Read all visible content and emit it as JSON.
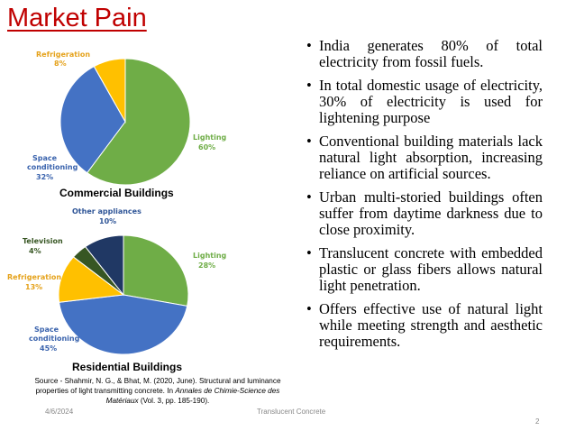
{
  "slide": {
    "title": "Market Pain",
    "date": "4/6/2024",
    "footer_center": "Translucent Concrete",
    "page_number": "2"
  },
  "commercial": {
    "caption": "Commercial Buildings",
    "slices": [
      {
        "name": "Lighting",
        "label": "Lighting",
        "pct_text": "60%",
        "value": 60,
        "color": "#6fad47"
      },
      {
        "name": "Space conditioning",
        "label_lines": [
          "Space",
          "conditioning"
        ],
        "pct_text": "32%",
        "value": 32,
        "color": "#4472c4"
      },
      {
        "name": "Refrigeration",
        "label": "Refrigeration",
        "pct_text": "8%",
        "value": 8,
        "color": "#ffc000"
      }
    ]
  },
  "residential": {
    "caption": "Residential Buildings",
    "slices": [
      {
        "name": "Lighting",
        "label": "Lighting",
        "pct_text": "28%",
        "value": 28,
        "color": "#6fad47"
      },
      {
        "name": "Space conditioning",
        "label_lines": [
          "Space",
          "conditioning"
        ],
        "pct_text": "45%",
        "value": 45,
        "color": "#4472c4"
      },
      {
        "name": "Refrigeration",
        "label": "Refrigeration",
        "pct_text": "13%",
        "value": 13,
        "color": "#ffc000"
      },
      {
        "name": "Television",
        "label": "Television",
        "pct_text": "4%",
        "value": 4,
        "color": "#375623"
      },
      {
        "name": "Other appliances",
        "label": "Other appliances",
        "pct_text": "10%",
        "value": 10,
        "color": "#203864"
      }
    ]
  },
  "bullets": [
    "India generates 80% of total electricity from fossil fuels.",
    "In total domestic usage of electricity, 30% of electricity is used for lightening purpose",
    "Conventional building materials lack natural light absorption, increasing reliance on artificial sources.",
    "Urban multi-storied buildings often suffer from daytime darkness due to close proximity.",
    "Translucent concrete with embedded plastic or glass fibers allows natural light penetration.",
    "Offers effective use of natural light while meeting strength and aesthetic requirements."
  ],
  "source": {
    "line1": "Source - Shahmir, N. G., & Bhat, M. (2020, June). Structural and luminance",
    "line2a": "properties of light transmitting concrete. In ",
    "journal": "Annales de Chimie-Science des Matériaux",
    "line2b": " (Vol. 3, pp. 185-190)."
  }
}
